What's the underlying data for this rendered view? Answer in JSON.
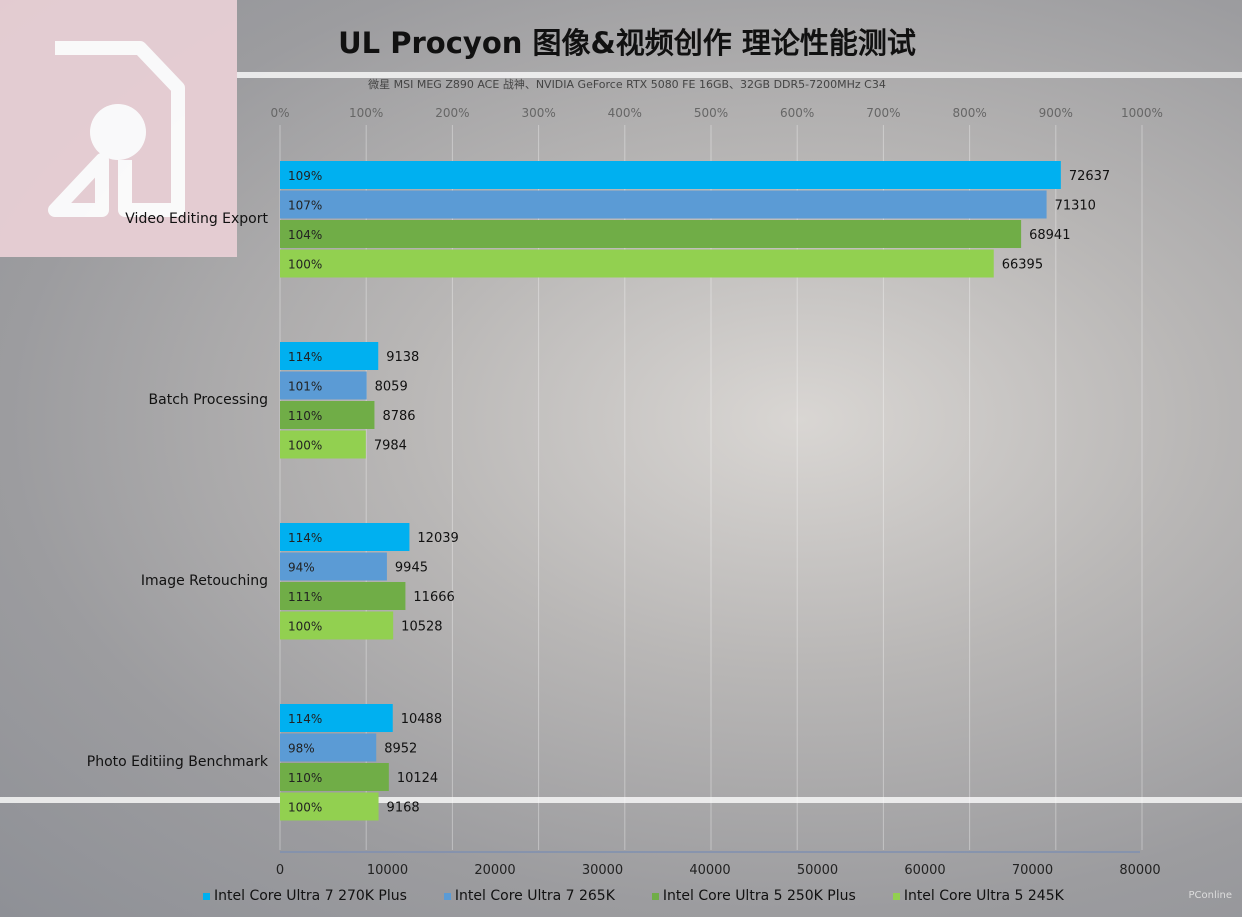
{
  "title": "UL Procyon  图像&视频创作 理论性能测试",
  "subtitle": "微星 MSI MEG Z890 ACE 战神、NVIDIA GeForce RTX 5080 FE 16GB、32GB DDR5-7200MHz C34",
  "watermark": "PConline",
  "colors": [
    "#00b0f0",
    "#5b9bd5",
    "#70ad47",
    "#92d050"
  ],
  "chart_data": {
    "type": "bar",
    "orientation": "horizontal",
    "title": "UL Procyon  图像&视频创作 理论性能测试",
    "categories": [
      "Video Editing Export",
      "Batch Processing",
      "Image Retouching",
      "Photo Editiing Benchmark"
    ],
    "series": [
      {
        "name": "Intel Core Ultra 7 270K Plus",
        "values": [
          72637,
          9138,
          12039,
          10488
        ],
        "percent_labels": [
          "109%",
          "114%",
          "114%",
          "114%"
        ]
      },
      {
        "name": "Intel Core Ultra 7 265K",
        "values": [
          71310,
          8059,
          9945,
          8952
        ],
        "percent_labels": [
          "107%",
          "101%",
          "94%",
          "98%"
        ]
      },
      {
        "name": "Intel Core Ultra 5 250K Plus",
        "values": [
          68941,
          8786,
          11666,
          10124
        ],
        "percent_labels": [
          "104%",
          "110%",
          "111%",
          "110%"
        ]
      },
      {
        "name": "Intel Core Ultra 5 245K",
        "values": [
          66395,
          7984,
          10528,
          9168
        ],
        "percent_labels": [
          "100%",
          "100%",
          "100%",
          "100%"
        ]
      }
    ],
    "xlim": [
      0,
      80000
    ],
    "xticks": [
      "0",
      "10000",
      "20000",
      "30000",
      "40000",
      "50000",
      "60000",
      "70000",
      "80000"
    ],
    "x2lim": [
      0,
      1000
    ],
    "x2ticks": [
      "0%",
      "100%",
      "200%",
      "300%",
      "400%",
      "500%",
      "600%",
      "700%",
      "800%",
      "900%",
      "1000%"
    ],
    "legend": "bottom",
    "grid": true
  }
}
